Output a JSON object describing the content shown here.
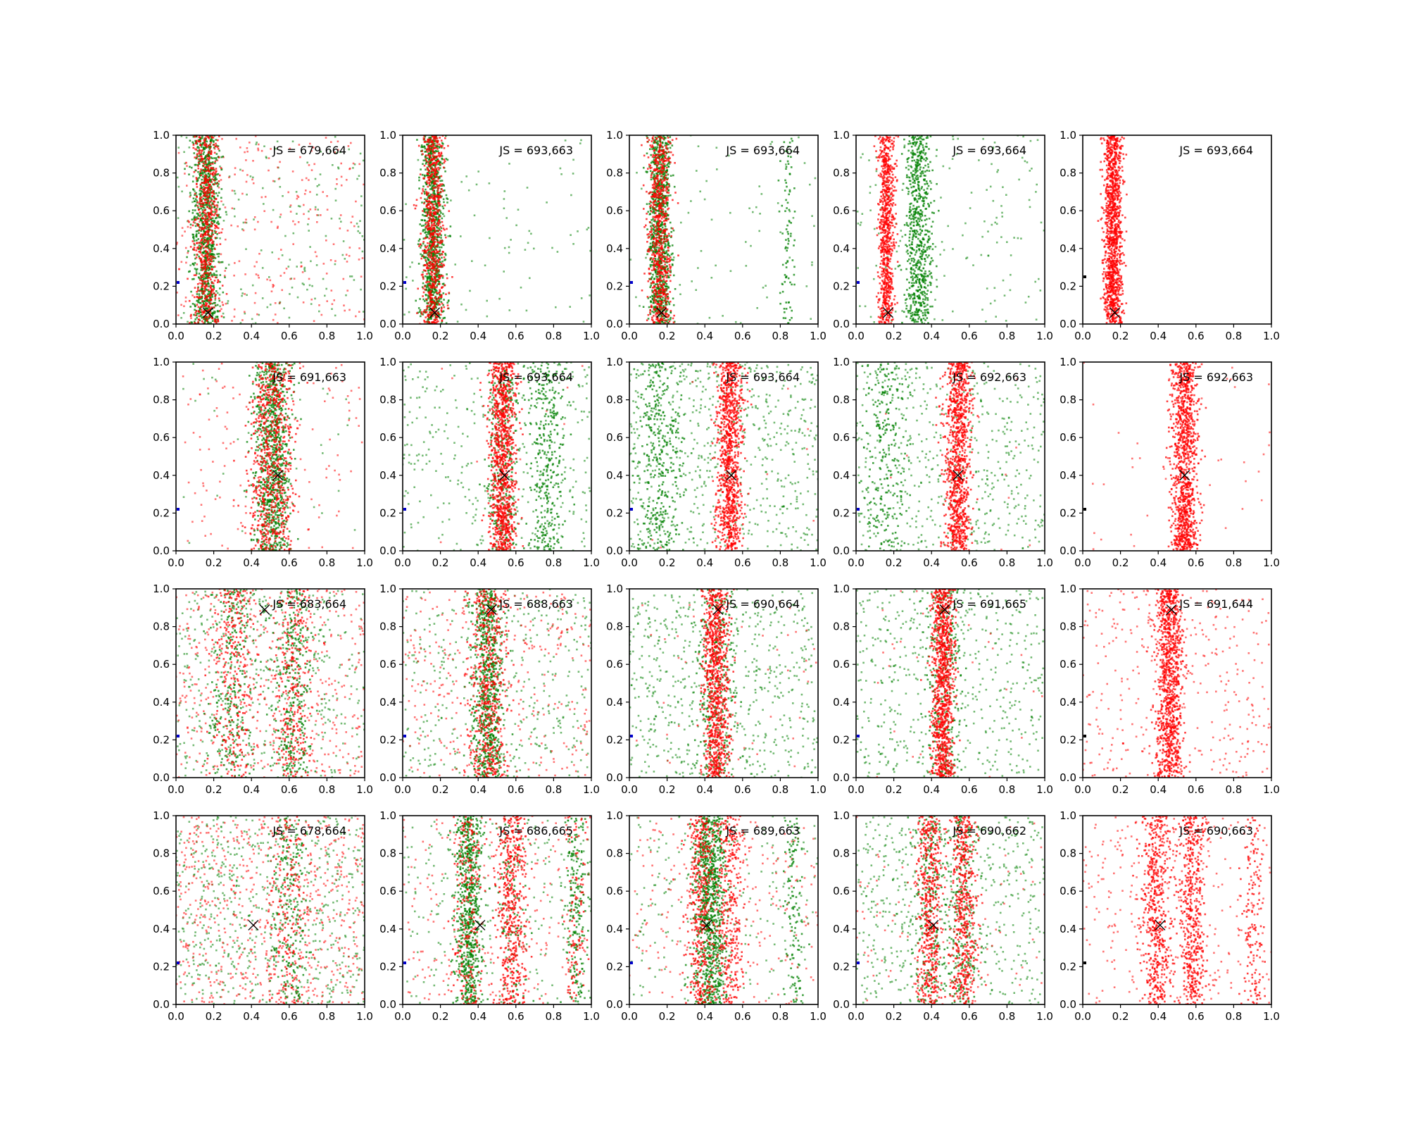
{
  "colors": {
    "series_a": "#ff0000",
    "series_b": "#008000",
    "marker": "#000000",
    "origin_dot": "#0000cc"
  },
  "chart_data": [
    {
      "type": "scatter",
      "row": 0,
      "col": 0,
      "label": "JS = 679,664",
      "xlim": [
        0,
        1
      ],
      "ylim": [
        0,
        1
      ],
      "marker_x": [
        0.17,
        0.06
      ],
      "bands": [
        {
          "color": "green",
          "center": 0.16,
          "width": 0.035,
          "n": 900
        },
        {
          "color": "red",
          "center": 0.16,
          "width": 0.035,
          "n": 600
        }
      ],
      "background": {
        "red": 260,
        "green": 200
      },
      "origin_dot": "blue"
    },
    {
      "type": "scatter",
      "row": 0,
      "col": 1,
      "label": "JS = 693,663",
      "xlim": [
        0,
        1
      ],
      "ylim": [
        0,
        1
      ],
      "marker_x": [
        0.17,
        0.06
      ],
      "bands": [
        {
          "color": "green",
          "center": 0.16,
          "width": 0.03,
          "n": 900
        },
        {
          "color": "red",
          "center": 0.16,
          "width": 0.03,
          "n": 700
        }
      ],
      "background": {
        "red": 0,
        "green": 90
      },
      "origin_dot": "blue"
    },
    {
      "type": "scatter",
      "row": 0,
      "col": 2,
      "label": "JS = 693,664",
      "xlim": [
        0,
        1
      ],
      "ylim": [
        0,
        1
      ],
      "marker_x": [
        0.17,
        0.06
      ],
      "bands": [
        {
          "color": "green",
          "center": 0.16,
          "width": 0.03,
          "n": 900
        },
        {
          "color": "red",
          "center": 0.16,
          "width": 0.03,
          "n": 700
        },
        {
          "color": "green",
          "center": 0.84,
          "width": 0.02,
          "n": 90
        }
      ],
      "background": {
        "red": 0,
        "green": 80
      },
      "origin_dot": "blue"
    },
    {
      "type": "scatter",
      "row": 0,
      "col": 3,
      "label": "JS = 693,664",
      "xlim": [
        0,
        1
      ],
      "ylim": [
        0,
        1
      ],
      "marker_x": [
        0.17,
        0.06
      ],
      "bands": [
        {
          "color": "green",
          "center": 0.33,
          "width": 0.035,
          "n": 700
        },
        {
          "color": "red",
          "center": 0.16,
          "width": 0.02,
          "n": 800
        }
      ],
      "background": {
        "red": 0,
        "green": 160
      },
      "origin_dot": "blue"
    },
    {
      "type": "scatter",
      "row": 0,
      "col": 4,
      "label": "JS = 693,664",
      "xlim": [
        0,
        1
      ],
      "ylim": [
        0,
        1
      ],
      "marker_x": [
        0.17,
        0.06
      ],
      "bands": [
        {
          "color": "red",
          "center": 0.16,
          "width": 0.025,
          "n": 1200
        }
      ],
      "background": {
        "red": 0,
        "green": 0
      },
      "origin_dot": "black"
    },
    {
      "type": "scatter",
      "row": 1,
      "col": 0,
      "label": "JS = 691,663",
      "xlim": [
        0,
        1
      ],
      "ylim": [
        0,
        1
      ],
      "marker_x": [
        0.54,
        0.4
      ],
      "bands": [
        {
          "color": "green",
          "center": 0.51,
          "width": 0.05,
          "n": 900
        },
        {
          "color": "red",
          "center": 0.51,
          "width": 0.06,
          "n": 700
        }
      ],
      "background": {
        "red": 140,
        "green": 40
      },
      "origin_dot": "blue"
    },
    {
      "type": "scatter",
      "row": 1,
      "col": 1,
      "label": "JS = 693,664",
      "xlim": [
        0,
        1
      ],
      "ylim": [
        0,
        1
      ],
      "marker_x": [
        0.54,
        0.4
      ],
      "bands": [
        {
          "color": "red",
          "center": 0.53,
          "width": 0.035,
          "n": 1000
        },
        {
          "color": "green",
          "center": 0.53,
          "width": 0.04,
          "n": 300
        },
        {
          "color": "green",
          "center": 0.76,
          "width": 0.05,
          "n": 350
        }
      ],
      "background": {
        "red": 10,
        "green": 350
      },
      "origin_dot": "blue"
    },
    {
      "type": "scatter",
      "row": 1,
      "col": 2,
      "label": "JS = 693,664",
      "xlim": [
        0,
        1
      ],
      "ylim": [
        0,
        1
      ],
      "marker_x": [
        0.54,
        0.4
      ],
      "bands": [
        {
          "color": "red",
          "center": 0.53,
          "width": 0.035,
          "n": 1000
        },
        {
          "color": "green",
          "center": 0.16,
          "width": 0.06,
          "n": 350
        }
      ],
      "background": {
        "red": 10,
        "green": 650
      },
      "origin_dot": "blue"
    },
    {
      "type": "scatter",
      "row": 1,
      "col": 3,
      "label": "JS = 692,663",
      "xlim": [
        0,
        1
      ],
      "ylim": [
        0,
        1
      ],
      "marker_x": [
        0.54,
        0.4
      ],
      "bands": [
        {
          "color": "red",
          "center": 0.54,
          "width": 0.035,
          "n": 1000
        },
        {
          "color": "green",
          "center": 0.16,
          "width": 0.06,
          "n": 250
        }
      ],
      "background": {
        "red": 10,
        "green": 550
      },
      "origin_dot": "blue"
    },
    {
      "type": "scatter",
      "row": 1,
      "col": 4,
      "label": "JS = 692,663",
      "xlim": [
        0,
        1
      ],
      "ylim": [
        0,
        1
      ],
      "marker_x": [
        0.54,
        0.4
      ],
      "bands": [
        {
          "color": "red",
          "center": 0.54,
          "width": 0.035,
          "n": 1100
        }
      ],
      "background": {
        "red": 40,
        "green": 0
      },
      "origin_dot": "black"
    },
    {
      "type": "scatter",
      "row": 2,
      "col": 0,
      "label": "JS = 683,664",
      "xlim": [
        0,
        1
      ],
      "ylim": [
        0,
        1
      ],
      "marker_x": [
        0.47,
        0.89
      ],
      "bands": [
        {
          "color": "green",
          "center": 0.3,
          "width": 0.06,
          "n": 250
        },
        {
          "color": "red",
          "center": 0.3,
          "width": 0.06,
          "n": 250
        },
        {
          "color": "green",
          "center": 0.62,
          "width": 0.05,
          "n": 300
        },
        {
          "color": "red",
          "center": 0.62,
          "width": 0.05,
          "n": 250
        }
      ],
      "background": {
        "red": 500,
        "green": 450
      },
      "origin_dot": "blue"
    },
    {
      "type": "scatter",
      "row": 2,
      "col": 1,
      "label": "JS = 688,663",
      "xlim": [
        0,
        1
      ],
      "ylim": [
        0,
        1
      ],
      "marker_x": [
        0.47,
        0.89
      ],
      "bands": [
        {
          "color": "green",
          "center": 0.45,
          "width": 0.04,
          "n": 700
        },
        {
          "color": "red",
          "center": 0.45,
          "width": 0.05,
          "n": 500
        }
      ],
      "background": {
        "red": 350,
        "green": 400
      },
      "origin_dot": "blue"
    },
    {
      "type": "scatter",
      "row": 2,
      "col": 2,
      "label": "JS = 690,664",
      "xlim": [
        0,
        1
      ],
      "ylim": [
        0,
        1
      ],
      "marker_x": [
        0.47,
        0.89
      ],
      "bands": [
        {
          "color": "red",
          "center": 0.46,
          "width": 0.035,
          "n": 900
        },
        {
          "color": "green",
          "center": 0.46,
          "width": 0.05,
          "n": 300
        }
      ],
      "background": {
        "red": 50,
        "green": 600
      },
      "origin_dot": "blue"
    },
    {
      "type": "scatter",
      "row": 2,
      "col": 3,
      "label": "JS = 691,665",
      "xlim": [
        0,
        1
      ],
      "ylim": [
        0,
        1
      ],
      "marker_x": [
        0.47,
        0.89
      ],
      "bands": [
        {
          "color": "red",
          "center": 0.46,
          "width": 0.03,
          "n": 1000
        },
        {
          "color": "green",
          "center": 0.46,
          "width": 0.05,
          "n": 250
        }
      ],
      "background": {
        "red": 30,
        "green": 550
      },
      "origin_dot": "blue"
    },
    {
      "type": "scatter",
      "row": 2,
      "col": 4,
      "label": "JS = 691,644",
      "xlim": [
        0,
        1
      ],
      "ylim": [
        0,
        1
      ],
      "marker_x": [
        0.47,
        0.89
      ],
      "bands": [
        {
          "color": "red",
          "center": 0.46,
          "width": 0.035,
          "n": 1000
        }
      ],
      "background": {
        "red": 350,
        "green": 0
      },
      "origin_dot": "black"
    },
    {
      "type": "scatter",
      "row": 3,
      "col": 0,
      "label": "JS = 678,664",
      "xlim": [
        0,
        1
      ],
      "ylim": [
        0,
        1
      ],
      "marker_x": [
        0.41,
        0.42
      ],
      "bands": [
        {
          "color": "green",
          "center": 0.6,
          "width": 0.05,
          "n": 200
        },
        {
          "color": "red",
          "center": 0.6,
          "width": 0.05,
          "n": 150
        }
      ],
      "background": {
        "red": 700,
        "green": 650
      },
      "origin_dot": "blue"
    },
    {
      "type": "scatter",
      "row": 3,
      "col": 1,
      "label": "JS = 686,665",
      "xlim": [
        0,
        1
      ],
      "ylim": [
        0,
        1
      ],
      "marker_x": [
        0.41,
        0.42
      ],
      "bands": [
        {
          "color": "green",
          "center": 0.35,
          "width": 0.035,
          "n": 700
        },
        {
          "color": "red",
          "center": 0.35,
          "width": 0.04,
          "n": 200
        },
        {
          "color": "red",
          "center": 0.58,
          "width": 0.04,
          "n": 500
        },
        {
          "color": "green",
          "center": 0.58,
          "width": 0.04,
          "n": 100
        },
        {
          "color": "green",
          "center": 0.92,
          "width": 0.03,
          "n": 200
        },
        {
          "color": "red",
          "center": 0.92,
          "width": 0.03,
          "n": 100
        }
      ],
      "background": {
        "red": 250,
        "green": 250
      },
      "origin_dot": "blue"
    },
    {
      "type": "scatter",
      "row": 3,
      "col": 2,
      "label": "JS = 689,663",
      "xlim": [
        0,
        1
      ],
      "ylim": [
        0,
        1
      ],
      "marker_x": [
        0.41,
        0.42
      ],
      "bands": [
        {
          "color": "green",
          "center": 0.43,
          "width": 0.04,
          "n": 900
        },
        {
          "color": "red",
          "center": 0.38,
          "width": 0.035,
          "n": 400
        },
        {
          "color": "red",
          "center": 0.53,
          "width": 0.04,
          "n": 350
        },
        {
          "color": "green",
          "center": 0.87,
          "width": 0.03,
          "n": 120
        }
      ],
      "background": {
        "red": 250,
        "green": 250
      },
      "origin_dot": "blue"
    },
    {
      "type": "scatter",
      "row": 3,
      "col": 3,
      "label": "JS = 690,662",
      "xlim": [
        0,
        1
      ],
      "ylim": [
        0,
        1
      ],
      "marker_x": [
        0.41,
        0.42
      ],
      "bands": [
        {
          "color": "red",
          "center": 0.39,
          "width": 0.035,
          "n": 500
        },
        {
          "color": "red",
          "center": 0.57,
          "width": 0.035,
          "n": 500
        },
        {
          "color": "green",
          "center": 0.39,
          "width": 0.04,
          "n": 200
        },
        {
          "color": "green",
          "center": 0.57,
          "width": 0.04,
          "n": 200
        }
      ],
      "background": {
        "red": 100,
        "green": 600
      },
      "origin_dot": "blue"
    },
    {
      "type": "scatter",
      "row": 3,
      "col": 4,
      "label": "JS = 690,663",
      "xlim": [
        0,
        1
      ],
      "ylim": [
        0,
        1
      ],
      "marker_x": [
        0.41,
        0.42
      ],
      "bands": [
        {
          "color": "red",
          "center": 0.39,
          "width": 0.04,
          "n": 550
        },
        {
          "color": "red",
          "center": 0.58,
          "width": 0.035,
          "n": 500
        },
        {
          "color": "red",
          "center": 0.9,
          "width": 0.03,
          "n": 150
        }
      ],
      "background": {
        "red": 300,
        "green": 0
      },
      "origin_dot": "black"
    }
  ],
  "tick_labels": [
    "0.0",
    "0.2",
    "0.4",
    "0.6",
    "0.8",
    "1.0"
  ]
}
